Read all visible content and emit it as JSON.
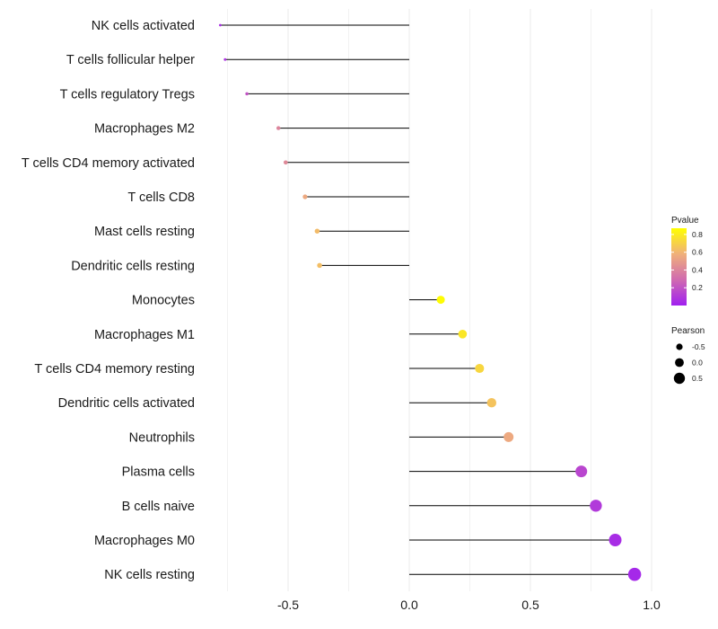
{
  "chart_data": {
    "type": "lollipop",
    "title": "",
    "xlabel": "",
    "ylabel": "",
    "xlim": [
      -0.78,
      1.0
    ],
    "x_ticks": [
      -0.5,
      0.0,
      0.5,
      1.0
    ],
    "x_tick_labels": [
      "-0.5",
      "0.0",
      "0.5",
      "1.0"
    ],
    "grid": "vertical",
    "categories": [
      "NK cells activated",
      "T cells follicular helper",
      "T cells regulatory  Tregs",
      "Macrophages M2",
      "T cells CD4 memory activated",
      "T cells CD8",
      "Mast cells resting",
      "Dendritic cells resting",
      "Monocytes",
      "Macrophages M1",
      "T cells CD4 memory resting",
      "Dendritic cells activated",
      "Neutrophils",
      "Plasma cells",
      "B cells naive",
      "Macrophages M0",
      "NK cells resting"
    ],
    "values": [
      -0.78,
      -0.76,
      -0.67,
      -0.54,
      -0.51,
      -0.43,
      -0.38,
      -0.37,
      0.13,
      0.22,
      0.29,
      0.34,
      0.41,
      0.71,
      0.77,
      0.85,
      0.93
    ],
    "pvalues": [
      0.05,
      0.07,
      0.2,
      0.4,
      0.42,
      0.55,
      0.62,
      0.63,
      0.86,
      0.78,
      0.72,
      0.65,
      0.55,
      0.15,
      0.1,
      0.05,
      0.03
    ],
    "legend_pvalue": {
      "title": "Pvalue",
      "ticks": [
        0.8,
        0.6,
        0.4,
        0.2
      ],
      "tick_labels": [
        "0.8",
        "0.6",
        "0.4",
        "0.2"
      ],
      "range": [
        0.0,
        0.87
      ],
      "colors": [
        "#a020f0",
        "#d06ab0",
        "#f0b07a",
        "#ffff00"
      ]
    },
    "legend_pearson": {
      "title": "Pearson",
      "entries": [
        -0.5,
        0.0,
        0.5
      ],
      "entry_labels": [
        "-0.5",
        "0.0",
        "0.5"
      ]
    },
    "legend_position": "right"
  }
}
